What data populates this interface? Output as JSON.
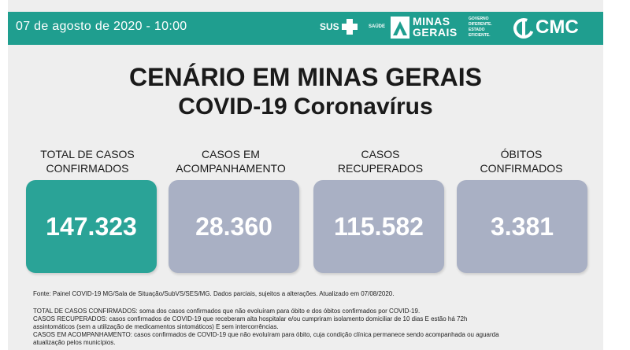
{
  "header": {
    "date": "07 de agosto de 2020 - 10:00",
    "sus_label": "SUS",
    "saude_label": "SAÚDE",
    "mg_line1": "MINAS",
    "mg_line2": "GERAIS",
    "mg_gov_line1": "GOVERNO",
    "mg_gov_line2": "DIFERENTE.",
    "mg_gov_line3": "ESTADO",
    "mg_gov_line4": "EFICIENTE.",
    "cmc_label": "CMC"
  },
  "titles": {
    "line1": "CENÁRIO EM MINAS GERAIS",
    "line2": "COVID-19 Coronavírus"
  },
  "cards": [
    {
      "label_line1": "TOTAL DE CASOS",
      "label_line2": "CONFIRMADOS",
      "value": "147.323"
    },
    {
      "label_line1": "CASOS EM",
      "label_line2": "ACOMPANHAMENTO",
      "value": "28.360"
    },
    {
      "label_line1": "CASOS",
      "label_line2": "RECUPERADOS",
      "value": "115.582"
    },
    {
      "label_line1": "ÓBITOS",
      "label_line2": "CONFIRMADOS",
      "value": "3.381"
    }
  ],
  "source": "Fonte: Painel COVID-19 MG/Sala de Situação/SubVS/SES/MG. Dados parciais, sujeitos a alterações. Atualizado em 07/08/2020.",
  "notes": [
    "TOTAL DE CASOS CONFIRMADOS: soma dos casos confirmados que não evoluíram para óbito e dos óbitos confirmados por COVID-19.",
    "CASOS RECUPERADOS: casos confirmados de COVID-19 que receberam alta hospitalar e/ou cumpriram isolamento domiciliar de 10 dias E estão há 72h",
    "assintomáticos (sem a utilização de medicamentos sintomáticos) E sem intercorrências.",
    "CASOS EM ACOMPANHAMENTO: casos confirmados de COVID-19 que não evoluíram para óbito, cuja condição clínica permanece sendo acompanhada ou aguarda",
    "atualização pelos municípios."
  ],
  "colors": {
    "header_bg": "#1f9e8f",
    "card_primary": "#2aa397",
    "card_secondary": "#a9b0c4"
  }
}
